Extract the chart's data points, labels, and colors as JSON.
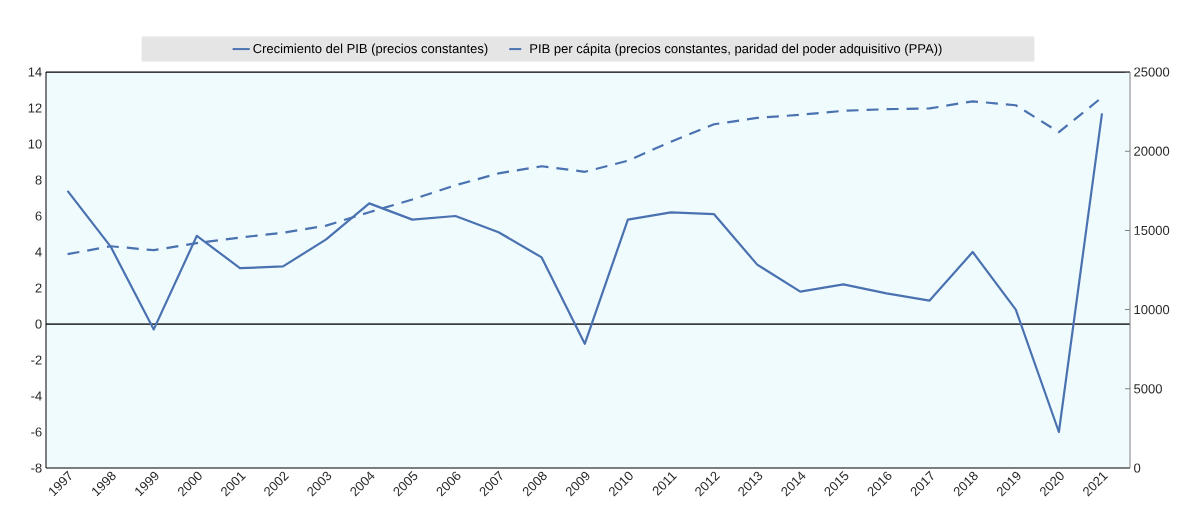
{
  "chart_data": {
    "type": "line",
    "categories": [
      "1997",
      "1998",
      "1999",
      "2000",
      "2001",
      "2002",
      "2003",
      "2004",
      "2005",
      "2006",
      "2007",
      "2008",
      "2009",
      "2010",
      "2011",
      "2012",
      "2013",
      "2014",
      "2015",
      "2016",
      "2017",
      "2018",
      "2019",
      "2020",
      "2021"
    ],
    "series": [
      {
        "name": "Crecimiento del PIB (precios constantes)",
        "color": "#4a72b0",
        "line_style": "solid",
        "values": [
          7.4,
          4.3,
          -0.3,
          4.9,
          3.1,
          3.2,
          4.7,
          6.7,
          5.8,
          6.0,
          5.1,
          3.7,
          -1.1,
          5.8,
          6.2,
          6.1,
          3.3,
          1.8,
          2.2,
          1.7,
          1.3,
          4.0,
          0.8,
          -6.0,
          11.7
        ]
      },
      {
        "name": "PIB per cápita (precios constantes, paridad del poder adquisitivo (PPA))",
        "color": "#4a72b0",
        "line_style": "dashed",
        "axis": "y2",
        "values": [
          13500,
          14000,
          13750,
          14200,
          14550,
          14850,
          15300,
          16150,
          16950,
          17850,
          18600,
          19050,
          18700,
          19400,
          20600,
          21700,
          22100,
          22300,
          22550,
          22650,
          22700,
          23150,
          22900,
          21200,
          23400
        ]
      }
    ],
    "ylim": [
      -8,
      14
    ],
    "yticks": [
      -8,
      -6,
      -4,
      -2,
      0,
      2,
      4,
      6,
      8,
      10,
      12,
      14
    ],
    "y2lim": [
      0,
      25000
    ],
    "y2ticks": [
      0,
      5000,
      10000,
      15000,
      20000,
      25000
    ],
    "ref_lines": [
      {
        "axis": "y",
        "value": 0,
        "color": "#000000"
      }
    ],
    "legend": "top",
    "grid": false
  }
}
